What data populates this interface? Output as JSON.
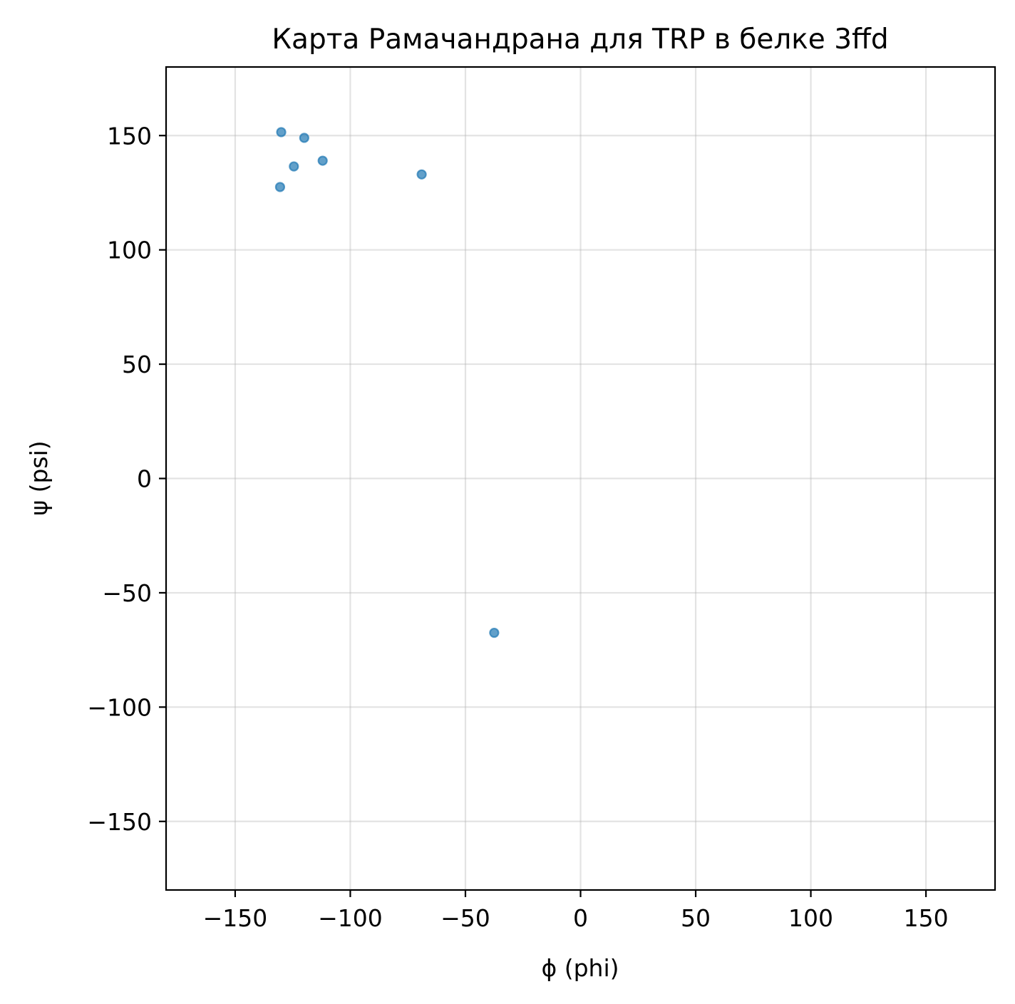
{
  "chart_data": {
    "type": "scatter",
    "title": "Карта Рамачандрана для TRP в белке 3ffd",
    "xlabel": "ϕ (phi)",
    "ylabel": "ψ (psi)",
    "xlim": [
      -180,
      180
    ],
    "ylim": [
      -180,
      180
    ],
    "xticks": [
      -150,
      -100,
      -50,
      0,
      50,
      100,
      150
    ],
    "yticks": [
      -150,
      -100,
      -50,
      0,
      50,
      100,
      150
    ],
    "xtick_labels": [
      "−150",
      "−100",
      "−50",
      "0",
      "50",
      "100",
      "150"
    ],
    "ytick_labels": [
      "−150",
      "−100",
      "−50",
      "0",
      "50",
      "100",
      "150"
    ],
    "grid": true,
    "color": "#1f77b4",
    "points": [
      {
        "x": -130,
        "y": 151.5
      },
      {
        "x": -120,
        "y": 149
      },
      {
        "x": -112,
        "y": 139
      },
      {
        "x": -124.5,
        "y": 136.5
      },
      {
        "x": -130.5,
        "y": 127.5
      },
      {
        "x": -69,
        "y": 133
      },
      {
        "x": -37.5,
        "y": -67.5
      }
    ]
  }
}
